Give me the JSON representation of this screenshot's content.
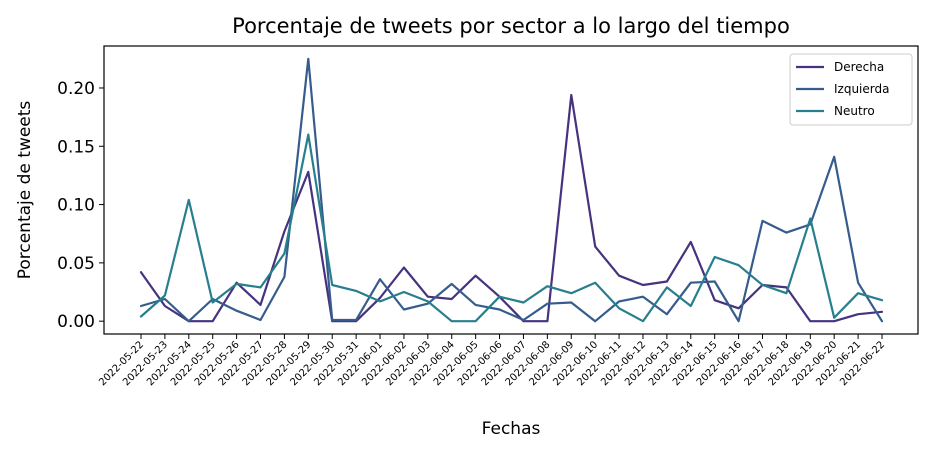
{
  "chart_data": {
    "type": "line",
    "title": "Porcentaje de tweets por sector a lo largo del tiempo",
    "xlabel": "Fechas",
    "ylabel": "Porcentaje de tweets",
    "ylim": [
      -0.011,
      0.236
    ],
    "yticks": [
      0.0,
      0.05,
      0.1,
      0.15,
      0.2
    ],
    "ytick_labels": [
      "0.00",
      "0.05",
      "0.10",
      "0.15",
      "0.20"
    ],
    "legend_position": "top-right",
    "grid": false,
    "x": [
      "2022-05-22",
      "2022-05-23",
      "2022-05-24",
      "2022-05-25",
      "2022-05-26",
      "2022-05-27",
      "2022-05-28",
      "2022-05-29",
      "2022-05-30",
      "2022-05-31",
      "2022-06-01",
      "2022-06-02",
      "2022-06-03",
      "2022-06-04",
      "2022-06-05",
      "2022-06-06",
      "2022-06-07",
      "2022-06-08",
      "2022-06-09",
      "2022-06-10",
      "2022-06-11",
      "2022-06-12",
      "2022-06-13",
      "2022-06-14",
      "2022-06-15",
      "2022-06-16",
      "2022-06-17",
      "2022-06-18",
      "2022-06-19",
      "2022-06-20",
      "2022-06-21",
      "2022-06-22"
    ],
    "series": [
      {
        "name": "Derecha",
        "color": "#46327e",
        "values": [
          0.042,
          0.013,
          0.0,
          0.0,
          0.033,
          0.014,
          0.077,
          0.128,
          0.0,
          0.0,
          0.02,
          0.046,
          0.021,
          0.019,
          0.039,
          0.021,
          0.0,
          0.0,
          0.194,
          0.064,
          0.039,
          0.031,
          0.034,
          0.068,
          0.018,
          0.011,
          0.031,
          0.029,
          0.0,
          0.0,
          0.006,
          0.008
        ]
      },
      {
        "name": "Izquierda",
        "color": "#365c8d",
        "values": [
          0.013,
          0.019,
          0.0,
          0.019,
          0.009,
          0.001,
          0.038,
          0.225,
          0.001,
          0.001,
          0.036,
          0.01,
          0.015,
          0.032,
          0.014,
          0.01,
          0.001,
          0.015,
          0.016,
          0.0,
          0.017,
          0.021,
          0.006,
          0.033,
          0.034,
          0.0,
          0.086,
          0.076,
          0.083,
          0.141,
          0.033,
          0.0
        ]
      },
      {
        "name": "Neutro",
        "color": "#277f8e",
        "values": [
          0.004,
          0.022,
          0.104,
          0.016,
          0.032,
          0.029,
          0.058,
          0.16,
          0.031,
          0.026,
          0.017,
          0.025,
          0.017,
          0.0,
          0.0,
          0.021,
          0.016,
          0.03,
          0.024,
          0.033,
          0.011,
          0.0,
          0.029,
          0.013,
          0.055,
          0.048,
          0.031,
          0.024,
          0.088,
          0.003,
          0.024,
          0.018
        ]
      }
    ]
  }
}
